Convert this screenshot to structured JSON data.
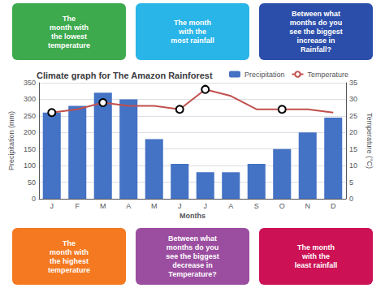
{
  "chart_data": {
    "type": "bar",
    "title": "Climate graph for The Amazon Rainforest",
    "categories": [
      "J",
      "F",
      "M",
      "A",
      "M",
      "J",
      "J",
      "A",
      "S",
      "O",
      "N",
      "D"
    ],
    "series": [
      {
        "name": "Precipitation",
        "type": "bar",
        "color": "#4472C4",
        "values": [
          260,
          280,
          320,
          300,
          180,
          105,
          80,
          80,
          105,
          150,
          200,
          245
        ]
      },
      {
        "name": "Temperature",
        "type": "line",
        "color": "#C0504D",
        "axis": "y2",
        "marker": "circle",
        "values": [
          26,
          27,
          29,
          28,
          28,
          27,
          33,
          31,
          27,
          27,
          27,
          26
        ],
        "circled": [
          true,
          false,
          true,
          false,
          false,
          true,
          true,
          false,
          false,
          true,
          false,
          false
        ]
      }
    ],
    "xlabel": "Months",
    "ylabel": "Precipitation (mm)",
    "y2label": "Temperature (°C)",
    "ylim": [
      0,
      350
    ],
    "yticks": [
      0,
      50,
      100,
      150,
      200,
      250,
      300,
      350
    ],
    "y2lim": [
      0,
      35
    ],
    "y2ticks": [
      0,
      5,
      10,
      15,
      20,
      25,
      30,
      35
    ],
    "grid": true,
    "legend": "upper right",
    "annotations": [
      {
        "text": "The\nmonth with\nthe lowest\ntemperature",
        "color": "#3DAA4E"
      },
      {
        "text": "The month\nwith the\nmost rainfall",
        "color": "#29B5E8"
      },
      {
        "text": "Between what\nmonths do you\nsee the biggest\nincrease in\nRainfall?",
        "color": "#2B4EAA"
      },
      {
        "text": "The\nmonth with\nthe highest\ntemperature",
        "color": "#F47920"
      },
      {
        "text": "Between what\nmonths do you\nsee the biggest\ndecrease in\nTemperature?",
        "color": "#9B4DA0"
      },
      {
        "text": "The month\nwith the\nleast rainfall",
        "color": "#CC1155"
      }
    ]
  }
}
